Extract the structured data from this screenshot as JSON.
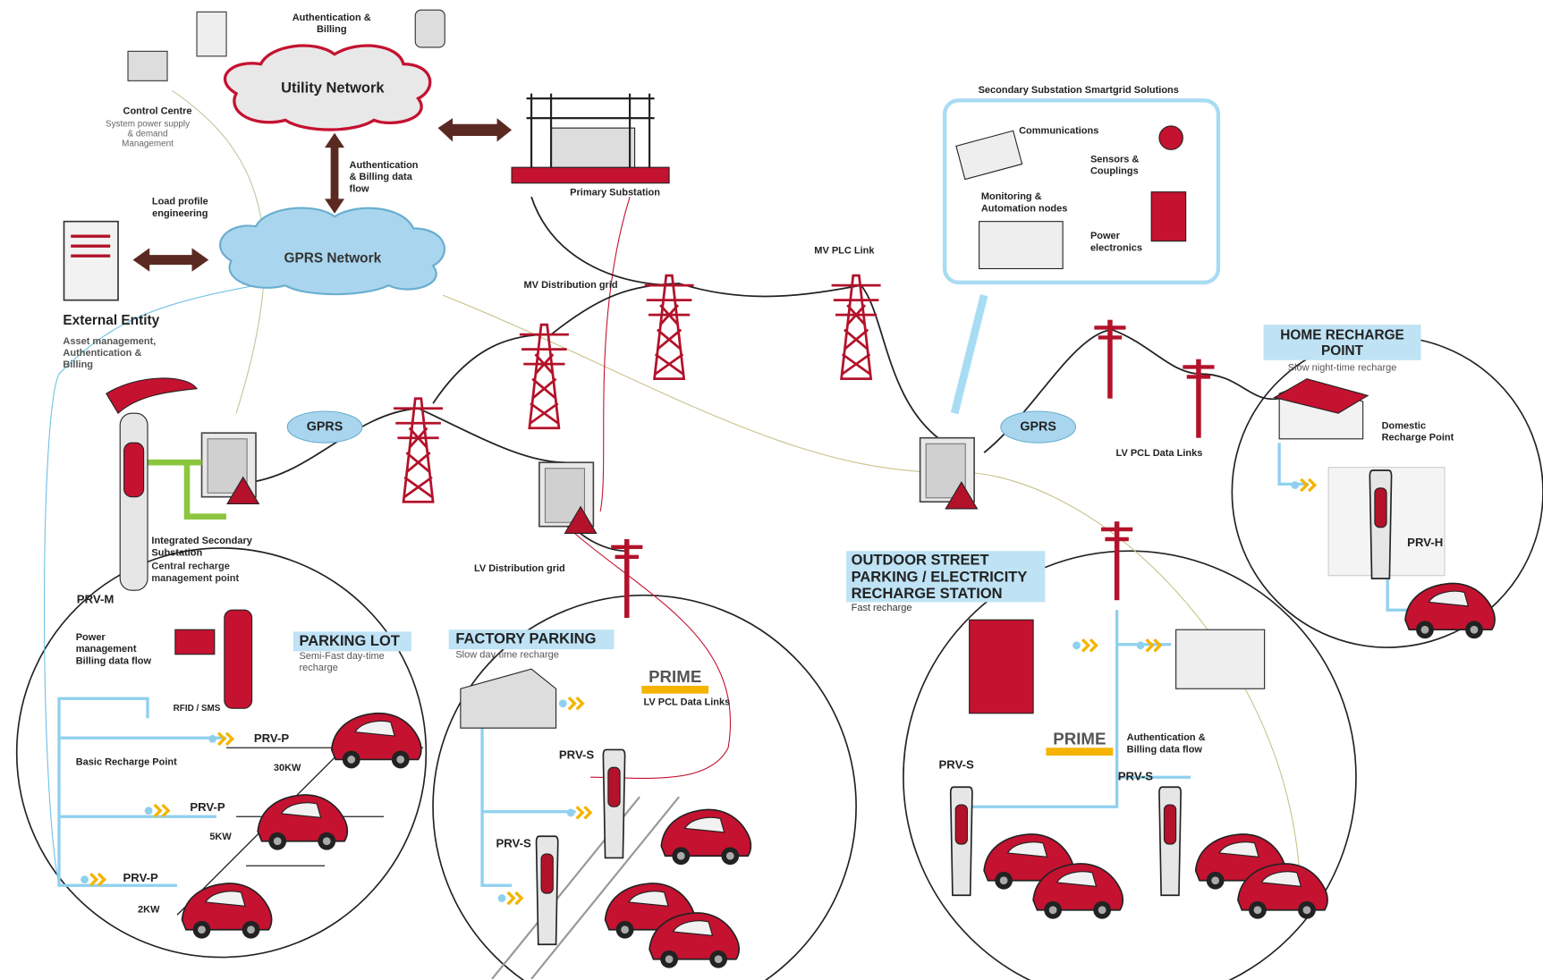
{
  "nodes": [
    {
      "label": [
        "Authentication &",
        "Billing"
      ]
    },
    {
      "label": [
        "Utility Network"
      ]
    },
    {
      "label": [
        "Control Centre"
      ]
    },
    {
      "label": [
        "System power supply",
        "& demand",
        "Management"
      ]
    },
    {
      "label": [
        "Authentication",
        "& Billing data",
        "flow"
      ]
    },
    {
      "label": [
        "Load profile",
        "engineering"
      ]
    },
    {
      "label": [
        "GPRS Network"
      ]
    },
    {
      "label": [
        "External Entity"
      ]
    },
    {
      "label": [
        "Asset management,",
        "Authentication &",
        "Billing"
      ]
    },
    {
      "label": [
        "Primary Substation"
      ]
    },
    {
      "label": [
        "MV Distribution grid"
      ]
    },
    {
      "label": [
        "MV PLC Link"
      ]
    },
    {
      "label": [
        "Secondary Substation Smartgrid Solutions"
      ]
    },
    {
      "label": [
        "Communications"
      ]
    },
    {
      "label": [
        "Sensors &",
        "Couplings"
      ]
    },
    {
      "label": [
        "Monitoring &",
        "Automation nodes"
      ]
    },
    {
      "label": [
        "Power",
        "electronics"
      ]
    },
    {
      "label": [
        "HOME RECHARGE",
        "POINT"
      ]
    },
    {
      "label": [
        "Slow night-time recharge"
      ]
    },
    {
      "label": [
        "Domestic",
        "Recharge Point"
      ]
    },
    {
      "label": [
        "LV PCL Data Links"
      ]
    },
    {
      "label": [
        "GPRS"
      ]
    },
    {
      "label": [
        "GPRS"
      ]
    },
    {
      "label": [
        "Integrated Secondary",
        "Substation"
      ]
    },
    {
      "label": [
        "Central recharge",
        "management point"
      ]
    },
    {
      "label": [
        "LV Distribution grid"
      ]
    },
    {
      "label": [
        "OUTDOOR STREET",
        "PARKING / ELECTRICITY",
        "RECHARGE STATION"
      ]
    },
    {
      "label": [
        "Fast recharge"
      ]
    },
    {
      "label": [
        "PRV-H"
      ]
    },
    {
      "label": [
        "PRV-M"
      ]
    },
    {
      "label": [
        "Power",
        "management",
        "Billing data flow"
      ]
    },
    {
      "label": [
        "PARKING LOT"
      ]
    },
    {
      "label": [
        "Semi-Fast day-time",
        "recharge"
      ]
    },
    {
      "label": [
        "FACTORY PARKING"
      ]
    },
    {
      "label": [
        "Slow day-time recharge"
      ]
    },
    {
      "label": [
        "PRIME"
      ]
    },
    {
      "label": [
        "LV PCL Data Links"
      ]
    },
    {
      "label": [
        "RFID / SMS"
      ]
    },
    {
      "label": [
        "PRIME"
      ]
    },
    {
      "label": [
        "Authentication &",
        "Billing data flow"
      ]
    },
    {
      "label": [
        "Basic Recharge Point"
      ]
    },
    {
      "label": [
        "PRV-P"
      ]
    },
    {
      "label": [
        "30KW"
      ]
    },
    {
      "label": [
        "PRV-P"
      ]
    },
    {
      "label": [
        "5KW"
      ]
    },
    {
      "label": [
        "PRV-P"
      ]
    },
    {
      "label": [
        "2KW"
      ]
    },
    {
      "label": [
        "PRV-S"
      ]
    },
    {
      "label": [
        "PRV-S"
      ]
    },
    {
      "label": [
        "PRV-S"
      ]
    },
    {
      "label": [
        "PRV-S"
      ]
    }
  ]
}
